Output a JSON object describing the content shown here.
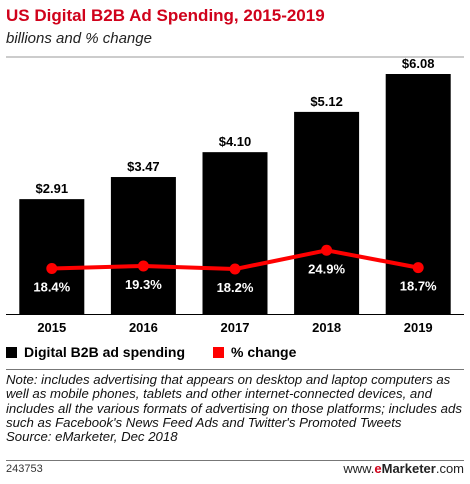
{
  "title": "US Digital B2B Ad Spending, 2015-2019",
  "subtitle": "billions and % change",
  "chart_data": {
    "type": "bar",
    "categories": [
      "2015",
      "2016",
      "2017",
      "2018",
      "2019"
    ],
    "series": [
      {
        "name": "Digital B2B ad spending",
        "type": "bar",
        "values": [
          2.91,
          3.47,
          4.1,
          5.12,
          6.08
        ],
        "labels": [
          "$2.91",
          "$3.47",
          "$4.10",
          "$5.12",
          "$6.08"
        ],
        "color": "#000000"
      },
      {
        "name": "% change",
        "type": "line",
        "values": [
          18.4,
          19.3,
          18.2,
          24.9,
          18.7
        ],
        "labels": [
          "18.4%",
          "19.3%",
          "18.2%",
          "24.9%",
          "18.7%"
        ],
        "color": "#ff0000"
      }
    ],
    "ylim_bar": [
      0,
      6.08
    ],
    "ylim_line": [
      0,
      30
    ],
    "grid": false,
    "legend_position": "bottom-left"
  },
  "legend": {
    "spending_label": "Digital B2B ad spending",
    "change_label": "% change"
  },
  "note": "Note: includes advertising that appears on desktop and laptop computers as well as mobile phones, tablets and other internet-connected devices, and includes all the various formats of advertising on those platforms; includes ads such as Facebook's News Feed Ads and Twitter's Promoted Tweets",
  "source": "Source: eMarketer, Dec 2018",
  "chart_id": "243753",
  "brand": {
    "prefix": "www.",
    "e": "e",
    "name": "Marketer",
    "suffix": ".com"
  }
}
